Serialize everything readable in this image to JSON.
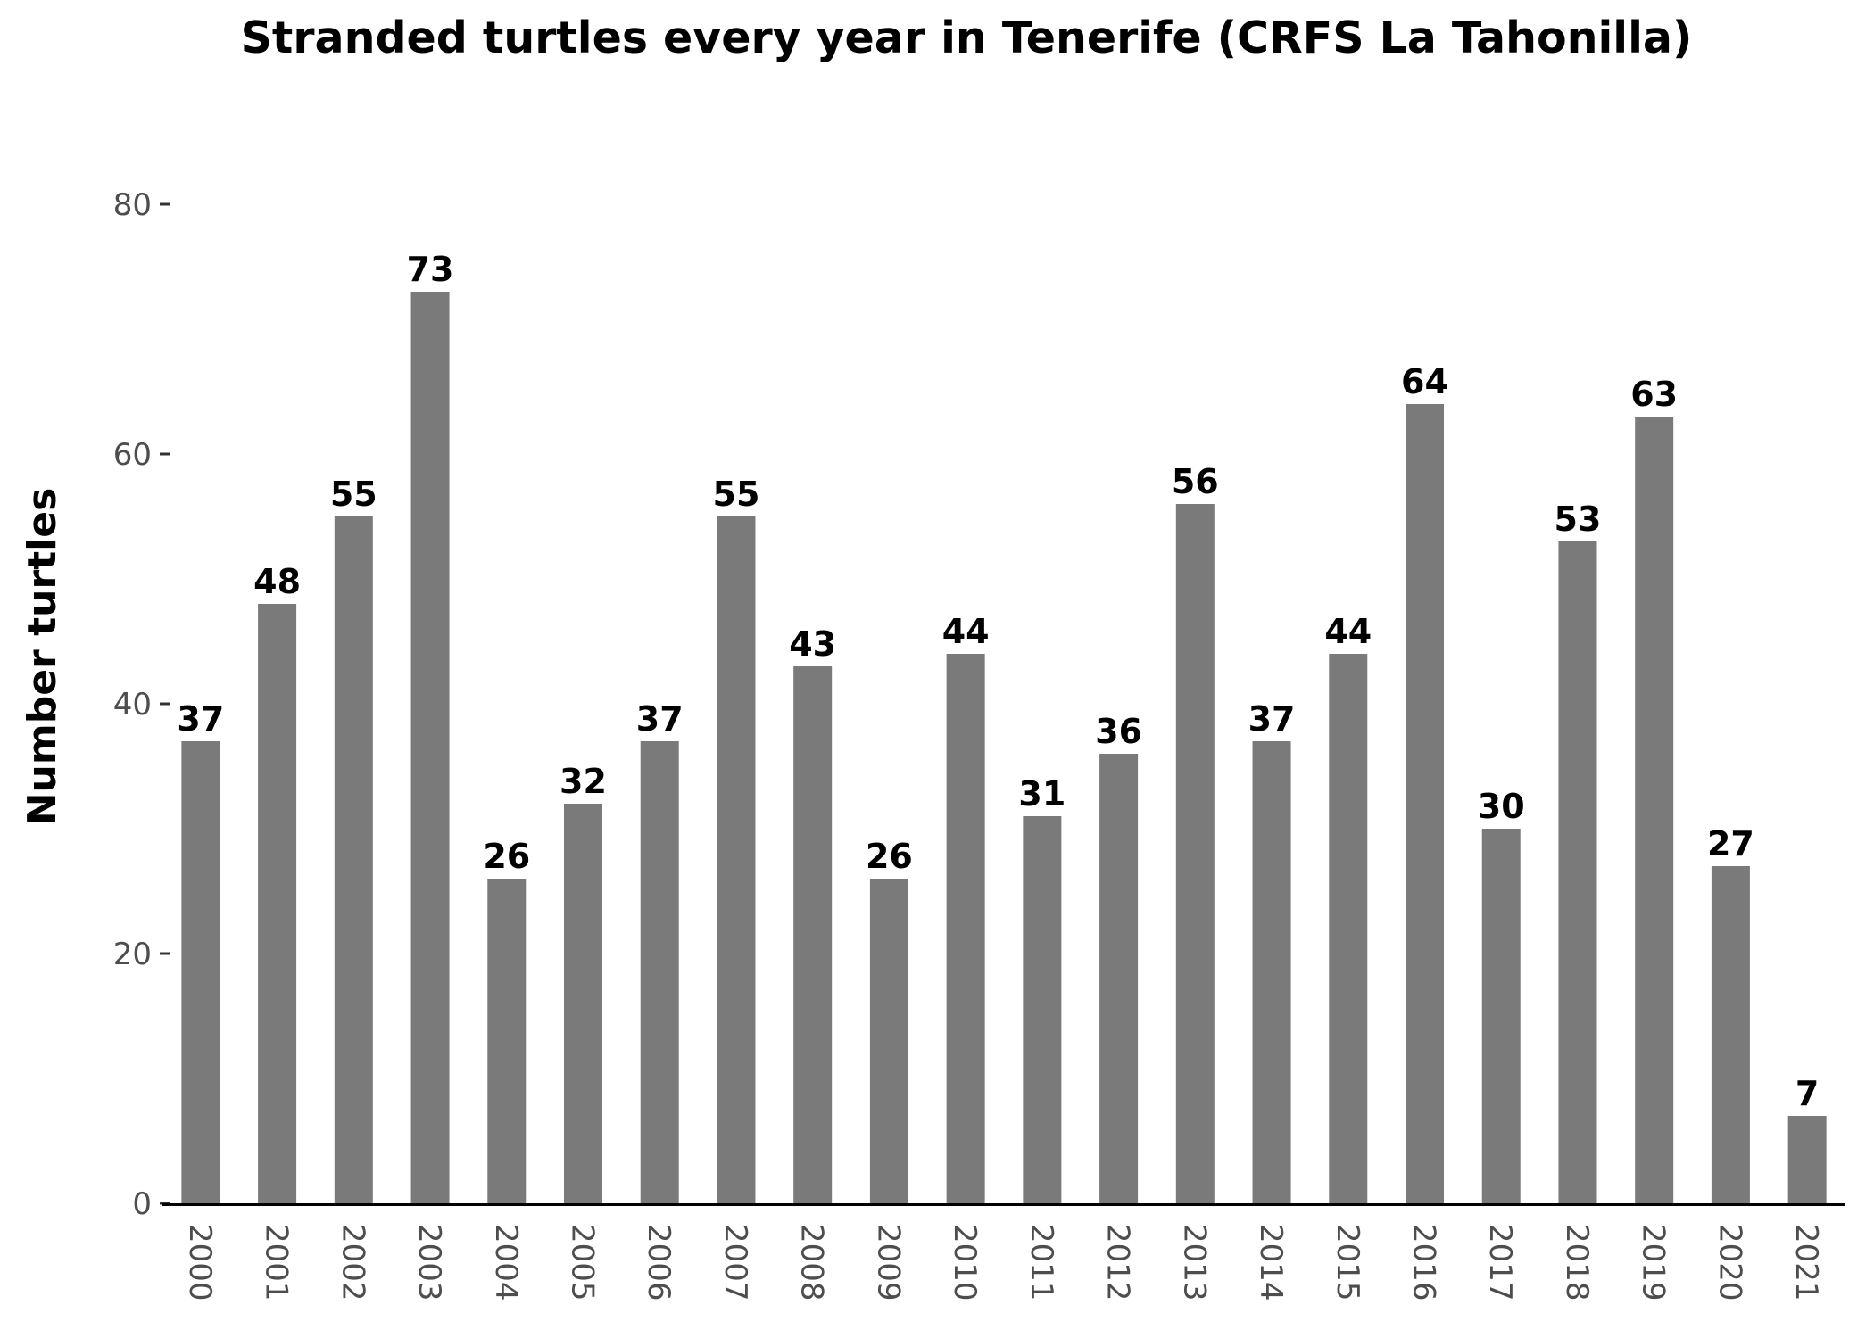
{
  "chart_data": {
    "type": "bar",
    "title": "Stranded turtles every year in Tenerife (CRFS La Tahonilla)",
    "xlabel": "",
    "ylabel": "Number turtles",
    "categories": [
      "2000",
      "2001",
      "2002",
      "2003",
      "2004",
      "2005",
      "2006",
      "2007",
      "2008",
      "2009",
      "2010",
      "2011",
      "2012",
      "2013",
      "2014",
      "2015",
      "2016",
      "2017",
      "2018",
      "2019",
      "2020",
      "2021"
    ],
    "values": [
      37,
      48,
      55,
      73,
      26,
      32,
      37,
      55,
      43,
      26,
      44,
      31,
      36,
      56,
      37,
      44,
      64,
      30,
      53,
      63,
      27,
      7
    ],
    "data_labels": [
      "37",
      "48",
      "55",
      "73",
      "26",
      "32",
      "37",
      "55",
      "43",
      "26",
      "44",
      "31",
      "36",
      "56",
      "37",
      "44",
      "64",
      "30",
      "53",
      "63",
      "27",
      "7"
    ],
    "yticks": [
      0,
      20,
      40,
      60,
      80
    ],
    "ytick_labels": [
      "0",
      "20",
      "40",
      "60",
      "80"
    ],
    "ylim": [
      0,
      80
    ],
    "grid": false,
    "legend": "none",
    "colors": {
      "bar": "#7a7a7a",
      "axis": "#000000",
      "tick_text": "#4d4d4d"
    }
  }
}
